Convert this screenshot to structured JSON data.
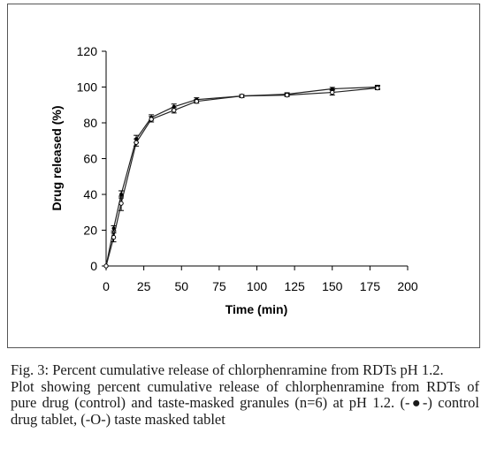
{
  "chart_data": {
    "type": "line",
    "xlabel": "Time (min)",
    "ylabel": "Drug released (%)",
    "xlim": [
      0,
      200
    ],
    "ylim": [
      0,
      120
    ],
    "x_ticks": [
      "0",
      "25",
      "50",
      "75",
      "100",
      "125",
      "150",
      "175",
      "200"
    ],
    "y_ticks": [
      "0",
      "20",
      "40",
      "60",
      "80",
      "100",
      "120"
    ],
    "grid": false,
    "legend": "none",
    "series": [
      {
        "marker": "filled-circle",
        "points": [
          {
            "x": 0,
            "y": 0,
            "err": 0
          },
          {
            "x": 5,
            "y": 21,
            "err": 1.5
          },
          {
            "x": 10,
            "y": 40,
            "err": 2
          },
          {
            "x": 20,
            "y": 71,
            "err": 2
          },
          {
            "x": 30,
            "y": 83,
            "err": 1.5
          },
          {
            "x": 45,
            "y": 89,
            "err": 1.5
          },
          {
            "x": 60,
            "y": 93,
            "err": 1
          },
          {
            "x": 90,
            "y": 95,
            "err": 0.8
          },
          {
            "x": 120,
            "y": 96,
            "err": 0.8
          },
          {
            "x": 150,
            "y": 99,
            "err": 0.8
          },
          {
            "x": 180,
            "y": 100,
            "err": 1
          }
        ]
      },
      {
        "marker": "open-circle",
        "points": [
          {
            "x": 0,
            "y": 0,
            "err": 0
          },
          {
            "x": 5,
            "y": 16,
            "err": 2.5
          },
          {
            "x": 10,
            "y": 35,
            "err": 4
          },
          {
            "x": 20,
            "y": 69,
            "err": 2
          },
          {
            "x": 30,
            "y": 82,
            "err": 1.5
          },
          {
            "x": 45,
            "y": 87,
            "err": 1.5
          },
          {
            "x": 60,
            "y": 92,
            "err": 1
          },
          {
            "x": 90,
            "y": 95,
            "err": 0.8
          },
          {
            "x": 120,
            "y": 95.5,
            "err": 0.8
          },
          {
            "x": 150,
            "y": 97,
            "err": 1.5
          },
          {
            "x": 180,
            "y": 99.5,
            "err": 1
          }
        ]
      }
    ]
  },
  "caption": {
    "title": "Fig. 3: Percent cumulative release of chlorphenramine from RDTs pH 1.2.",
    "text_before_filled": "Plot showing percent cumulative release of chlorphenramine from RDTs of pure drug (control) and taste-masked granules (n=6) at pH 1.2. (-",
    "filled_marker": "●",
    "text_between": "-) control drug tablet, (-",
    "open_marker": "O",
    "text_after_open": "-) taste masked tablet"
  }
}
